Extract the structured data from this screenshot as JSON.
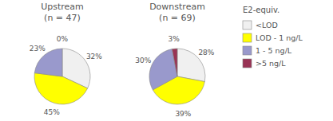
{
  "chart_data": {
    "type": "pie",
    "legend": "right",
    "legend_title": "E2-equiv.",
    "categories": [
      "<LOD",
      "LOD - 1 ng/L",
      "1 - 5 ng/L",
      ">5 ng/L"
    ],
    "colors": [
      "#f0f0f0",
      "#ffff00",
      "#9999cc",
      "#993355"
    ],
    "series": [
      {
        "name": "Upstream",
        "subtitle": "(n = 47)",
        "values": [
          32,
          45,
          23,
          0
        ],
        "value_labels": [
          "32%",
          "45%",
          "23%",
          "0%"
        ],
        "colors": [
          "#f0f0f0",
          "#ffff00",
          "#9999cc",
          "#f0f0f0"
        ]
      },
      {
        "name": "Downstream",
        "subtitle": "(n = 69)",
        "values": [
          28,
          39,
          30,
          3
        ],
        "value_labels": [
          "28%",
          "39%",
          "30%",
          "3%"
        ],
        "colors": [
          "#f0f0f0",
          "#ffff00",
          "#9999cc",
          "#993355"
        ]
      }
    ]
  }
}
